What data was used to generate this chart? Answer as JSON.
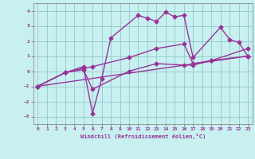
{
  "background_color": "#c8f0f0",
  "grid_color": "#99cccc",
  "line_color": "#993399",
  "marker": "D",
  "markersize": 2.5,
  "linewidth": 1.0,
  "xlim": [
    -0.5,
    23.5
  ],
  "ylim": [
    -3.5,
    4.5
  ],
  "yticks": [
    -3,
    -2,
    -1,
    0,
    1,
    2,
    3,
    4
  ],
  "xticks": [
    0,
    1,
    2,
    3,
    4,
    5,
    6,
    7,
    8,
    9,
    10,
    11,
    12,
    13,
    14,
    15,
    16,
    17,
    18,
    19,
    20,
    21,
    22,
    23
  ],
  "xlabel": "Windchill (Refroidissement éolien,°C)",
  "line1_x": [
    0,
    3,
    5,
    6,
    7,
    8,
    11,
    12,
    13,
    14,
    15,
    16,
    17,
    20,
    21,
    22,
    23
  ],
  "line1_y": [
    -1.0,
    -0.1,
    0.3,
    -2.8,
    -0.5,
    2.2,
    3.7,
    3.5,
    3.3,
    3.9,
    3.6,
    3.7,
    0.9,
    2.9,
    2.1,
    1.9,
    1.0
  ],
  "line2_x": [
    0,
    23
  ],
  "line2_y": [
    -1.0,
    1.0
  ],
  "line3_x": [
    0,
    3,
    5,
    6,
    10,
    13,
    16,
    17,
    19,
    23
  ],
  "line3_y": [
    -1.0,
    -0.1,
    0.2,
    0.3,
    0.9,
    1.5,
    1.8,
    0.5,
    0.7,
    1.5
  ],
  "line4_x": [
    0,
    3,
    5,
    6,
    10,
    13,
    16,
    17,
    19,
    23
  ],
  "line4_y": [
    -1.0,
    -0.1,
    0.1,
    -1.2,
    0.0,
    0.5,
    0.4,
    0.4,
    0.7,
    1.0
  ]
}
